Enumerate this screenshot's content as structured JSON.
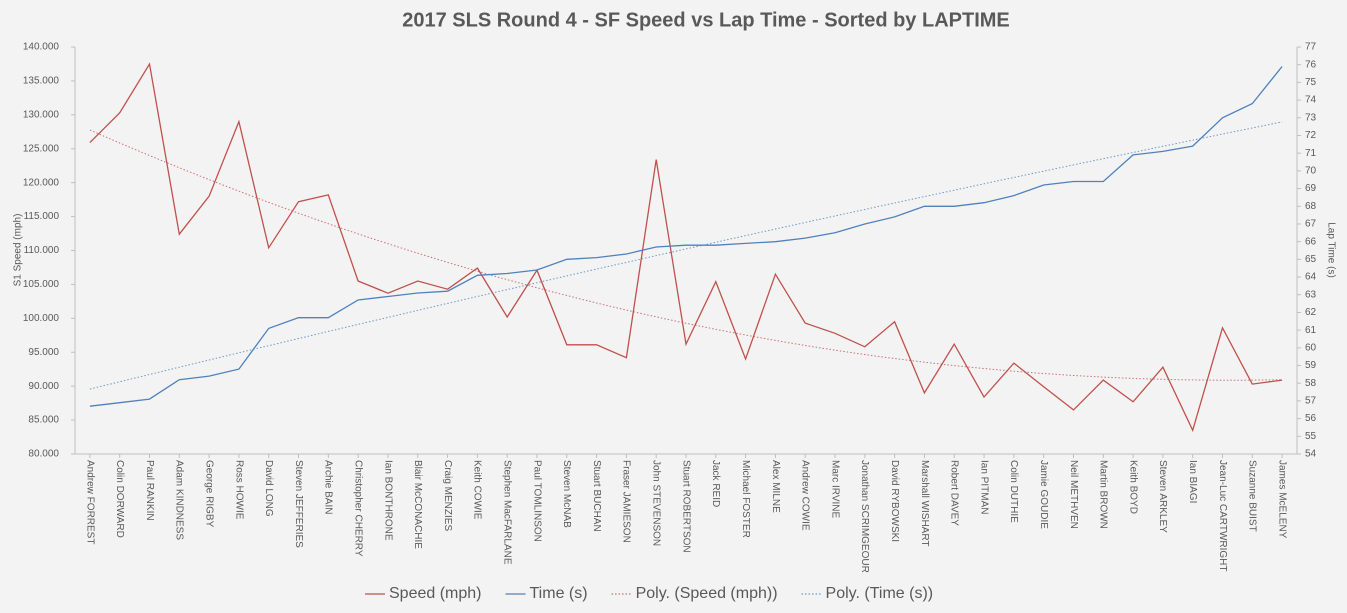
{
  "chart_data": {
    "type": "line",
    "title": "2017 SLS Round 4 - SF Speed vs Lap Time - Sorted by LAPTIME",
    "y_label": "S1 Speed (mph)",
    "y2_label": "Lap Time (s)",
    "categories": [
      "Andrew FORREST",
      "Colin DORWARD",
      "Paul RANKIN",
      "Adam KINDNESS",
      "George RIGBY",
      "Ross HOWIE",
      "David LONG",
      "Steven JEFFERIES",
      "Archie BAIN",
      "Christopher CHERRY",
      "Ian BONTHRONE",
      "Blair McCONACHIE",
      "Craig MENZIES",
      "Keith COWIE",
      "Stephen MacFARLANE",
      "Paul TOMLINSON",
      "Steven McNAB",
      "Stuart BUCHAN",
      "Fraser JAMIESON",
      "John STEVENSON",
      "Stuart ROBERTSON",
      "Jack REID",
      "Michael FOSTER",
      "Alex MILNE",
      "Andrew COWIE",
      "Marc IRVINE",
      "Jonathan SCRIMGEOUR",
      "David RYBOWSKI",
      "Marshall WISHART",
      "Robert DAVEY",
      "Ian PITMAN",
      "Colin DUTHIE",
      "Jamie GOUDIE",
      "Neil METHVEN",
      "Martin BROWN",
      "Keith BOYD",
      "Steven ARKLEY",
      "Ian BIAGI",
      "Jean-Luc CARTWRIGHT",
      "Suzanne BUIST",
      "James McELENY"
    ],
    "series": [
      {
        "name": "Speed (mph)",
        "color": "#c0504d",
        "axis": "y",
        "trendline": "Poly. (Speed (mph))",
        "values": [
          125.9,
          130.3,
          137.5,
          112.4,
          118.0,
          129.0,
          110.4,
          117.2,
          118.2,
          105.5,
          103.7,
          105.5,
          104.3,
          107.4,
          100.2,
          107.1,
          96.1,
          96.1,
          94.2,
          123.4,
          96.2,
          105.4,
          94.0,
          106.5,
          99.3,
          97.8,
          95.8,
          99.5,
          89.0,
          96.2,
          88.4,
          93.4,
          89.9,
          86.5,
          90.9,
          87.7,
          92.8,
          83.5,
          98.6,
          90.3,
          90.9
        ]
      },
      {
        "name": "Time (s)",
        "color": "#4f81bd",
        "axis": "y2",
        "trendline": "Poly. (Time (s))",
        "values": [
          56.7,
          56.9,
          57.1,
          58.2,
          58.4,
          58.8,
          61.1,
          61.7,
          61.7,
          62.7,
          62.9,
          63.1,
          63.2,
          64.1,
          64.2,
          64.4,
          65.0,
          65.1,
          65.3,
          65.7,
          65.8,
          65.8,
          65.9,
          66.0,
          66.2,
          66.5,
          67.0,
          67.4,
          68.0,
          68.0,
          68.2,
          68.6,
          69.2,
          69.4,
          69.4,
          70.9,
          71.1,
          71.4,
          73.0,
          73.8,
          75.9
        ]
      }
    ],
    "ylim": [
      80,
      140
    ],
    "yticks": [
      {
        "value": 80,
        "label": "80.000"
      },
      {
        "value": 85,
        "label": "85.000"
      },
      {
        "value": 90,
        "label": "90.000"
      },
      {
        "value": 95,
        "label": "95.000"
      },
      {
        "value": 100,
        "label": "100.000"
      },
      {
        "value": 105,
        "label": "105.000"
      },
      {
        "value": 110,
        "label": "110.000"
      },
      {
        "value": 115,
        "label": "115.000"
      },
      {
        "value": 120,
        "label": "120.000"
      },
      {
        "value": 125,
        "label": "125.000"
      },
      {
        "value": 130,
        "label": "130.000"
      },
      {
        "value": 135,
        "label": "135.000"
      },
      {
        "value": 140,
        "label": "140.000"
      }
    ],
    "y2lim": [
      54,
      77
    ],
    "y2ticks": [
      54,
      55,
      56,
      57,
      58,
      59,
      60,
      61,
      62,
      63,
      64,
      65,
      66,
      67,
      68,
      69,
      70,
      71,
      72,
      73,
      74,
      75,
      76,
      77
    ],
    "legend": "bottom"
  }
}
